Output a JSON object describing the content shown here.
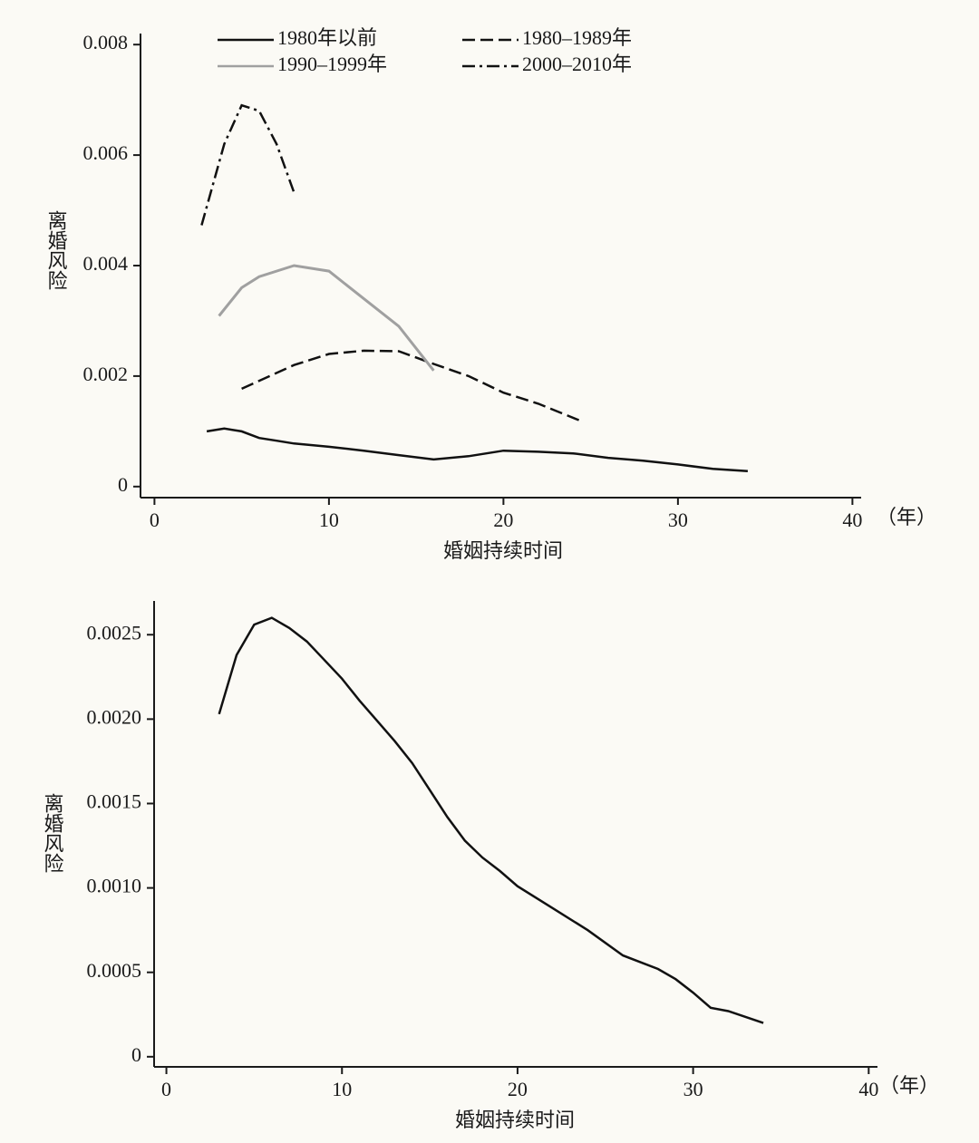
{
  "chart_data": [
    {
      "type": "line",
      "xlabel": "婚姻持续时间",
      "ylabel": "离婚风险",
      "x_unit": "（年）",
      "xlim": [
        -0.8,
        40.5
      ],
      "ylim": [
        -0.0002,
        0.0082
      ],
      "xticks": [
        0,
        10,
        20,
        30,
        40
      ],
      "yticks": [
        0,
        0.002,
        0.004,
        0.006,
        0.008
      ],
      "legend": "top",
      "series": [
        {
          "name": "1980年以前",
          "color": "#111111",
          "dash": "solid",
          "x": [
            3,
            4,
            5,
            6,
            7,
            8,
            10,
            12,
            14,
            16,
            18,
            20,
            22,
            24,
            26,
            28,
            30,
            32,
            34
          ],
          "values": [
            0.001,
            0.00105,
            0.001,
            0.00088,
            0.00083,
            0.00078,
            0.00072,
            0.00065,
            0.00057,
            0.00049,
            0.00055,
            0.00065,
            0.00063,
            0.0006,
            0.00052,
            0.00047,
            0.0004,
            0.00032,
            0.00028
          ]
        },
        {
          "name": "1980–1989年",
          "color": "#111111",
          "dash": "dashed",
          "x": [
            5,
            8,
            10,
            12,
            14,
            16,
            18,
            20,
            22,
            24.5
          ],
          "values": [
            0.00177,
            0.0022,
            0.0024,
            0.00246,
            0.00245,
            0.00222,
            0.002,
            0.0017,
            0.0015,
            0.00118
          ]
        },
        {
          "name": "1990–1999年",
          "color": "#a0a0a0",
          "dash": "solid",
          "x": [
            3.7,
            5,
            6,
            8,
            10,
            12,
            14,
            16
          ],
          "values": [
            0.00309,
            0.0036,
            0.0038,
            0.004,
            0.0039,
            0.0034,
            0.0029,
            0.0021
          ]
        },
        {
          "name": "2000–2010年",
          "color": "#111111",
          "dash": "dashdot",
          "x": [
            2.7,
            4,
            5,
            6,
            7,
            8
          ],
          "values": [
            0.00473,
            0.0062,
            0.0069,
            0.0068,
            0.0062,
            0.00532
          ]
        }
      ]
    },
    {
      "type": "line",
      "xlabel": "婚姻持续时间",
      "ylabel": "离婚风险",
      "x_unit": "（年）",
      "xlim": [
        -0.7,
        40.5
      ],
      "ylim": [
        -6e-05,
        0.0027
      ],
      "xticks": [
        0,
        10,
        20,
        30,
        40
      ],
      "yticks": [
        0,
        0.0005,
        {
          "value": 0.001,
          "label": "0.0010"
        },
        0.0015,
        {
          "value": 0.002,
          "label": "0.0020"
        },
        0.0025
      ],
      "series": [
        {
          "color": "#111111",
          "dash": "solid",
          "x": [
            3,
            4,
            5,
            6,
            7,
            8,
            9,
            10,
            11,
            12,
            13,
            14,
            15,
            16,
            17,
            18,
            19,
            20,
            22,
            24,
            26,
            28,
            29,
            30,
            31,
            32,
            34
          ],
          "values": [
            0.00203,
            0.00238,
            0.00256,
            0.0026,
            0.00254,
            0.00246,
            0.00235,
            0.00224,
            0.00211,
            0.00199,
            0.00187,
            0.00174,
            0.00158,
            0.00142,
            0.00128,
            0.00118,
            0.0011,
            0.00101,
            0.00088,
            0.00075,
            0.0006,
            0.00052,
            0.00046,
            0.00038,
            0.00029,
            0.00027,
            0.0002
          ]
        }
      ]
    }
  ]
}
